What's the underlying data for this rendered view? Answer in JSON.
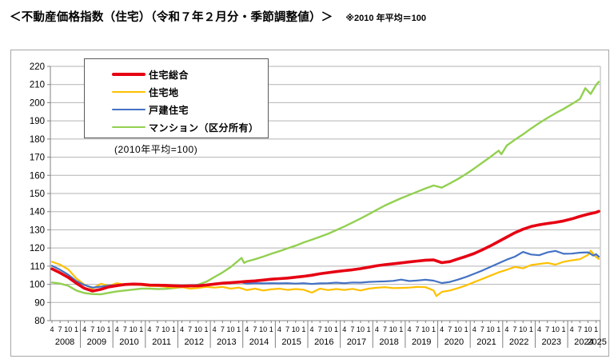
{
  "header": {
    "title": "＜不動産価格指数（住宅）（令和７年２月分・季節調整値）＞",
    "note": "※2010 年平均＝100"
  },
  "chart_data": {
    "type": "line",
    "title": "不動産価格指数（住宅）",
    "legend_note": "(2010年平均=100)",
    "ylim": [
      80,
      220
    ],
    "ytick_step": 10,
    "x_start": "2008-04",
    "x_end": "2025-02",
    "x_unit": "month index from 2008-04",
    "month_tick_pattern": [
      "4",
      "7",
      "10",
      "1"
    ],
    "years": [
      2008,
      2009,
      2010,
      2011,
      2012,
      2013,
      2014,
      2015,
      2016,
      2017,
      2018,
      2019,
      2020,
      2021,
      2022,
      2023,
      2024,
      2025
    ],
    "grid_color": "#b3b3b3",
    "axis_color": "#808080",
    "legend_position": "top-left",
    "series": [
      {
        "id": "mansion",
        "name": "マンション（区分所有）",
        "color": "#92d050",
        "width": 2.4,
        "points": [
          [
            0,
            101.0
          ],
          [
            3,
            100.4
          ],
          [
            6,
            99.2
          ],
          [
            9,
            96.6
          ],
          [
            12,
            95.2
          ],
          [
            15,
            94.6
          ],
          [
            18,
            94.5
          ],
          [
            21,
            95.3
          ],
          [
            24,
            96.1
          ],
          [
            27,
            96.6
          ],
          [
            30,
            97.1
          ],
          [
            33,
            97.6
          ],
          [
            36,
            97.6
          ],
          [
            39,
            97.4
          ],
          [
            42,
            97.5
          ],
          [
            45,
            97.9
          ],
          [
            48,
            98.4
          ],
          [
            51,
            99.0
          ],
          [
            54,
            99.8
          ],
          [
            57,
            101.4
          ],
          [
            60,
            104.0
          ],
          [
            63,
            106.5
          ],
          [
            66,
            109.5
          ],
          [
            69,
            113.2
          ],
          [
            70,
            114.5
          ],
          [
            71,
            111.8
          ],
          [
            72,
            112.6
          ],
          [
            75,
            113.8
          ],
          [
            78,
            115.2
          ],
          [
            81,
            116.8
          ],
          [
            84,
            118.2
          ],
          [
            87,
            119.8
          ],
          [
            90,
            121.3
          ],
          [
            93,
            123.0
          ],
          [
            96,
            124.6
          ],
          [
            99,
            126.2
          ],
          [
            102,
            127.8
          ],
          [
            105,
            129.8
          ],
          [
            108,
            131.8
          ],
          [
            111,
            134.0
          ],
          [
            114,
            136.2
          ],
          [
            117,
            138.6
          ],
          [
            120,
            141.0
          ],
          [
            123,
            143.4
          ],
          [
            126,
            145.4
          ],
          [
            129,
            147.4
          ],
          [
            132,
            149.2
          ],
          [
            135,
            151.0
          ],
          [
            138,
            152.8
          ],
          [
            141,
            154.4
          ],
          [
            144,
            153.2
          ],
          [
            147,
            155.6
          ],
          [
            150,
            158.0
          ],
          [
            153,
            160.8
          ],
          [
            156,
            163.8
          ],
          [
            159,
            167.0
          ],
          [
            162,
            170.2
          ],
          [
            165,
            173.6
          ],
          [
            166,
            171.6
          ],
          [
            168,
            176.4
          ],
          [
            171,
            179.6
          ],
          [
            174,
            182.6
          ],
          [
            177,
            185.8
          ],
          [
            180,
            188.8
          ],
          [
            183,
            191.6
          ],
          [
            186,
            194.2
          ],
          [
            189,
            196.6
          ],
          [
            192,
            199.2
          ],
          [
            195,
            202.0
          ],
          [
            197,
            208.0
          ],
          [
            199,
            204.8
          ],
          [
            201,
            209.8
          ],
          [
            202,
            211.5
          ]
        ]
      },
      {
        "id": "land",
        "name": "住宅地",
        "color": "#ffc000",
        "width": 2.2,
        "points": [
          [
            0,
            112.4
          ],
          [
            3,
            110.8
          ],
          [
            6,
            108.2
          ],
          [
            9,
            103.2
          ],
          [
            12,
            99.8
          ],
          [
            15,
            97.6
          ],
          [
            18,
            100.3
          ],
          [
            21,
            99.2
          ],
          [
            24,
            100.6
          ],
          [
            27,
            99.9
          ],
          [
            30,
            99.8
          ],
          [
            33,
            99.6
          ],
          [
            36,
            99.0
          ],
          [
            39,
            99.1
          ],
          [
            42,
            98.6
          ],
          [
            45,
            98.2
          ],
          [
            48,
            98.4
          ],
          [
            51,
            97.6
          ],
          [
            54,
            98.0
          ],
          [
            57,
            98.6
          ],
          [
            60,
            98.2
          ],
          [
            63,
            98.6
          ],
          [
            66,
            97.6
          ],
          [
            69,
            98.2
          ],
          [
            72,
            96.8
          ],
          [
            75,
            97.6
          ],
          [
            78,
            96.6
          ],
          [
            81,
            97.2
          ],
          [
            84,
            97.6
          ],
          [
            87,
            96.9
          ],
          [
            90,
            97.4
          ],
          [
            93,
            97.0
          ],
          [
            96,
            95.4
          ],
          [
            99,
            97.6
          ],
          [
            102,
            96.8
          ],
          [
            105,
            97.4
          ],
          [
            108,
            96.9
          ],
          [
            111,
            97.5
          ],
          [
            114,
            96.6
          ],
          [
            117,
            97.6
          ],
          [
            120,
            98.1
          ],
          [
            123,
            98.4
          ],
          [
            126,
            97.9
          ],
          [
            129,
            98.0
          ],
          [
            132,
            98.2
          ],
          [
            135,
            98.6
          ],
          [
            138,
            98.4
          ],
          [
            141,
            96.6
          ],
          [
            142,
            93.5
          ],
          [
            144,
            95.8
          ],
          [
            147,
            96.6
          ],
          [
            150,
            97.9
          ],
          [
            153,
            99.4
          ],
          [
            156,
            101.2
          ],
          [
            159,
            103.0
          ],
          [
            162,
            104.8
          ],
          [
            165,
            106.6
          ],
          [
            168,
            108.0
          ],
          [
            171,
            109.6
          ],
          [
            174,
            108.8
          ],
          [
            177,
            110.6
          ],
          [
            180,
            111.2
          ],
          [
            183,
            111.8
          ],
          [
            186,
            110.8
          ],
          [
            189,
            112.4
          ],
          [
            192,
            113.2
          ],
          [
            195,
            113.8
          ],
          [
            198,
            116.2
          ],
          [
            199,
            118.5
          ],
          [
            201,
            115.0
          ],
          [
            202,
            114.0
          ]
        ]
      },
      {
        "id": "detached",
        "name": "戸建住宅",
        "color": "#4472c4",
        "width": 2.2,
        "points": [
          [
            0,
            110.2
          ],
          [
            3,
            108.0
          ],
          [
            6,
            105.3
          ],
          [
            9,
            101.8
          ],
          [
            12,
            99.6
          ],
          [
            15,
            98.2
          ],
          [
            18,
            98.7
          ],
          [
            21,
            99.2
          ],
          [
            24,
            99.6
          ],
          [
            27,
            100.0
          ],
          [
            30,
            100.2
          ],
          [
            33,
            100.0
          ],
          [
            36,
            99.7
          ],
          [
            39,
            99.6
          ],
          [
            42,
            99.2
          ],
          [
            45,
            99.0
          ],
          [
            48,
            99.1
          ],
          [
            51,
            99.4
          ],
          [
            54,
            99.6
          ],
          [
            57,
            99.7
          ],
          [
            60,
            100.0
          ],
          [
            63,
            100.4
          ],
          [
            66,
            100.6
          ],
          [
            69,
            101.4
          ],
          [
            72,
            100.4
          ],
          [
            75,
            100.6
          ],
          [
            78,
            100.5
          ],
          [
            81,
            100.6
          ],
          [
            84,
            100.5
          ],
          [
            87,
            100.6
          ],
          [
            90,
            100.4
          ],
          [
            93,
            100.6
          ],
          [
            96,
            100.2
          ],
          [
            99,
            100.5
          ],
          [
            102,
            100.6
          ],
          [
            105,
            100.9
          ],
          [
            108,
            100.6
          ],
          [
            111,
            101.0
          ],
          [
            114,
            100.9
          ],
          [
            117,
            101.3
          ],
          [
            120,
            101.5
          ],
          [
            123,
            101.6
          ],
          [
            126,
            101.9
          ],
          [
            129,
            102.6
          ],
          [
            132,
            101.8
          ],
          [
            135,
            102.1
          ],
          [
            138,
            102.5
          ],
          [
            141,
            102.0
          ],
          [
            144,
            100.7
          ],
          [
            147,
            101.3
          ],
          [
            150,
            102.6
          ],
          [
            153,
            104.1
          ],
          [
            156,
            105.8
          ],
          [
            159,
            107.6
          ],
          [
            162,
            109.6
          ],
          [
            165,
            111.6
          ],
          [
            168,
            113.6
          ],
          [
            171,
            115.2
          ],
          [
            174,
            117.8
          ],
          [
            177,
            116.4
          ],
          [
            180,
            116.0
          ],
          [
            183,
            117.6
          ],
          [
            186,
            118.4
          ],
          [
            189,
            116.8
          ],
          [
            192,
            116.9
          ],
          [
            195,
            117.4
          ],
          [
            198,
            117.6
          ],
          [
            200,
            115.8
          ],
          [
            201,
            116.6
          ],
          [
            202,
            115.2
          ]
        ]
      },
      {
        "id": "total",
        "name": "住宅総合",
        "color": "#e60012",
        "width": 3.6,
        "points": [
          [
            0,
            108.5
          ],
          [
            3,
            106.3
          ],
          [
            6,
            103.8
          ],
          [
            9,
            100.6
          ],
          [
            12,
            97.8
          ],
          [
            15,
            96.3
          ],
          [
            18,
            97.2
          ],
          [
            21,
            98.6
          ],
          [
            24,
            99.3
          ],
          [
            27,
            99.9
          ],
          [
            30,
            100.1
          ],
          [
            33,
            100.0
          ],
          [
            36,
            99.6
          ],
          [
            39,
            99.5
          ],
          [
            42,
            99.4
          ],
          [
            45,
            99.2
          ],
          [
            48,
            99.0
          ],
          [
            51,
            99.1
          ],
          [
            54,
            99.2
          ],
          [
            57,
            99.6
          ],
          [
            60,
            100.1
          ],
          [
            63,
            100.6
          ],
          [
            66,
            100.9
          ],
          [
            69,
            101.2
          ],
          [
            72,
            101.6
          ],
          [
            75,
            101.9
          ],
          [
            78,
            102.3
          ],
          [
            81,
            102.8
          ],
          [
            84,
            103.1
          ],
          [
            87,
            103.4
          ],
          [
            90,
            103.9
          ],
          [
            93,
            104.4
          ],
          [
            96,
            105.0
          ],
          [
            99,
            105.8
          ],
          [
            102,
            106.4
          ],
          [
            105,
            107.0
          ],
          [
            108,
            107.5
          ],
          [
            111,
            108.0
          ],
          [
            114,
            108.6
          ],
          [
            117,
            109.4
          ],
          [
            120,
            110.2
          ],
          [
            123,
            110.8
          ],
          [
            126,
            111.3
          ],
          [
            129,
            111.8
          ],
          [
            132,
            112.3
          ],
          [
            135,
            112.8
          ],
          [
            138,
            113.3
          ],
          [
            141,
            113.4
          ],
          [
            144,
            111.9
          ],
          [
            147,
            112.5
          ],
          [
            150,
            114.0
          ],
          [
            153,
            115.4
          ],
          [
            156,
            117.0
          ],
          [
            159,
            119.0
          ],
          [
            162,
            121.2
          ],
          [
            165,
            123.6
          ],
          [
            168,
            126.0
          ],
          [
            171,
            128.4
          ],
          [
            174,
            130.3
          ],
          [
            177,
            131.8
          ],
          [
            180,
            132.8
          ],
          [
            183,
            133.5
          ],
          [
            186,
            134.1
          ],
          [
            189,
            134.9
          ],
          [
            192,
            136.0
          ],
          [
            195,
            137.4
          ],
          [
            198,
            138.6
          ],
          [
            201,
            139.6
          ],
          [
            202,
            140.2
          ]
        ]
      }
    ],
    "legend_order": [
      "total",
      "land",
      "detached",
      "mansion"
    ]
  }
}
